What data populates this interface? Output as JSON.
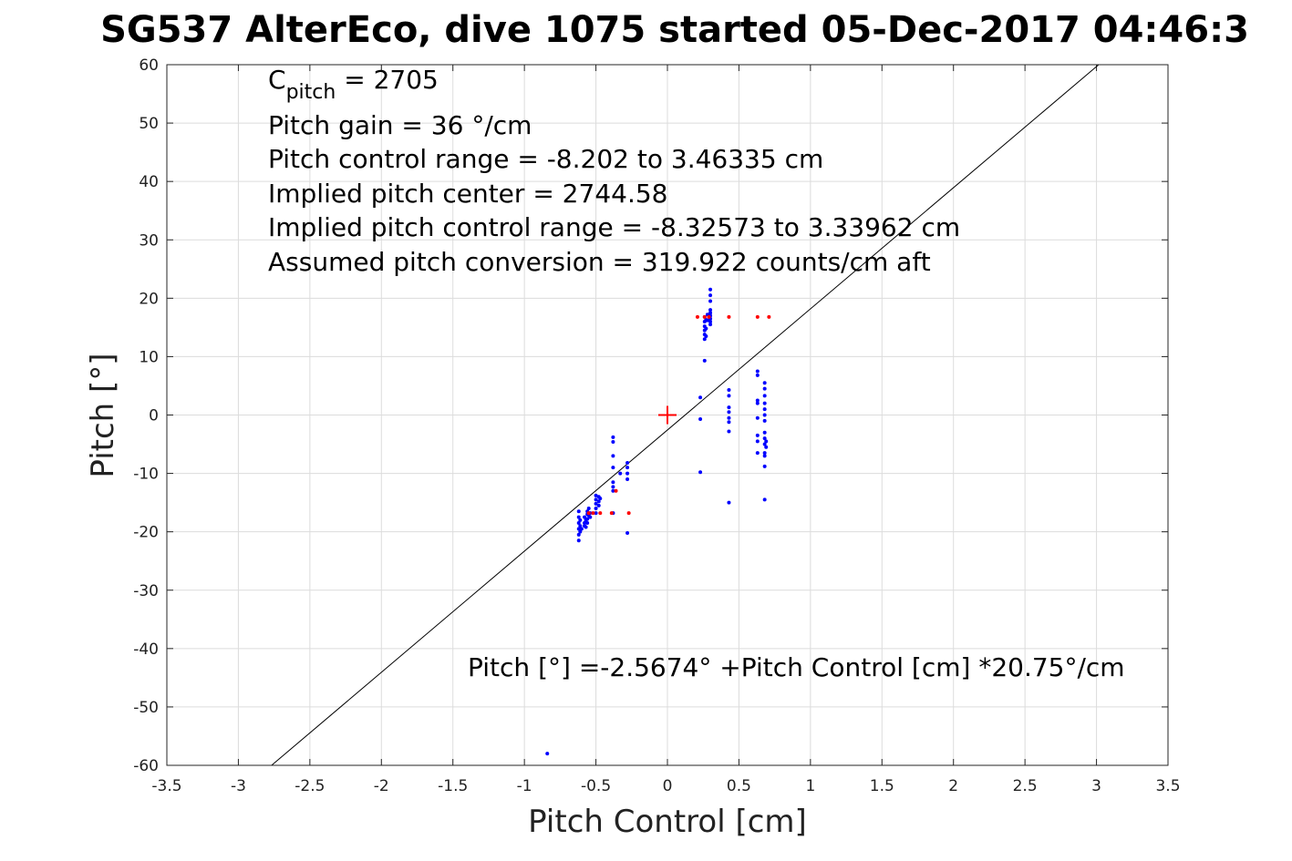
{
  "chart_data": {
    "type": "scatter",
    "title": "SG537 AlterEco, dive 1075 started 05-Dec-2017 04:46:3",
    "xlabel": "Pitch Control [cm]",
    "ylabel": "Pitch [°]",
    "xlim": [
      -3.5,
      3.5
    ],
    "ylim": [
      -60,
      60
    ],
    "grid": true,
    "xticks": [
      -3.5,
      -3,
      -2.5,
      -2,
      -1.5,
      -1,
      -0.5,
      0,
      0.5,
      1,
      1.5,
      2,
      2.5,
      3,
      3.5
    ],
    "xtick_labels": [
      "-3.5",
      "-3",
      "-2.5",
      "-2",
      "-1.5",
      "-1",
      "-0.5",
      "0",
      "0.5",
      "1",
      "1.5",
      "2",
      "2.5",
      "3",
      "3.5"
    ],
    "yticks": [
      -60,
      -50,
      -40,
      -30,
      -20,
      -10,
      0,
      10,
      20,
      30,
      40,
      50,
      60
    ],
    "ytick_labels": [
      "-60",
      "-50",
      "-40",
      "-30",
      "-20",
      "-10",
      "0",
      "10",
      "20",
      "30",
      "40",
      "50",
      "60"
    ],
    "annotations": {
      "c_pitch_main": "C",
      "c_pitch_sub": "pitch",
      "c_pitch_value": " = 2705",
      "lines": [
        "Pitch gain = 36 °/cm",
        "Pitch control range = -8.202 to 3.46335 cm",
        "Implied pitch center = 2744.58",
        "Implied pitch control range = -8.32573 to 3.33962 cm",
        "Assumed pitch conversion = 319.922 counts/cm aft"
      ],
      "fit_equation": "Pitch [°] =-2.5674° +Pitch Control [cm] *20.75°/cm"
    },
    "fit_line": {
      "intercept": -2.5674,
      "slope": 20.75,
      "color": "#000000"
    },
    "center_marker": {
      "x": 0,
      "y": 0,
      "color": "#ff0000"
    },
    "series": [
      {
        "color": "#0000ff",
        "points": [
          [
            -0.62,
            -16.5
          ],
          [
            -0.62,
            -17.5
          ],
          [
            -0.62,
            -18.5
          ],
          [
            -0.62,
            -19.5
          ],
          [
            -0.62,
            -20.5
          ],
          [
            -0.62,
            -21.5
          ],
          [
            -0.61,
            -18.0
          ],
          [
            -0.61,
            -19.0
          ],
          [
            -0.61,
            -20.0
          ],
          [
            -0.6,
            -19.5
          ],
          [
            -0.58,
            -17.5
          ],
          [
            -0.58,
            -18.5
          ],
          [
            -0.58,
            -19.0
          ],
          [
            -0.57,
            -18.0
          ],
          [
            -0.57,
            -19.2
          ],
          [
            -0.56,
            -16.5
          ],
          [
            -0.56,
            -17.0
          ],
          [
            -0.56,
            -17.8
          ],
          [
            -0.56,
            -18.5
          ],
          [
            -0.55,
            -16.0
          ],
          [
            -0.55,
            -17.2
          ],
          [
            -0.54,
            -16.8
          ],
          [
            -0.54,
            -17.5
          ],
          [
            -0.5,
            -13.8
          ],
          [
            -0.5,
            -14.5
          ],
          [
            -0.5,
            -15.2
          ],
          [
            -0.5,
            -16.0
          ],
          [
            -0.5,
            -16.8
          ],
          [
            -0.48,
            -14.0
          ],
          [
            -0.48,
            -14.8
          ],
          [
            -0.48,
            -15.5
          ],
          [
            -0.47,
            -14.3
          ],
          [
            -0.38,
            -3.8
          ],
          [
            -0.38,
            -4.6
          ],
          [
            -0.38,
            -7.0
          ],
          [
            -0.38,
            -9.0
          ],
          [
            -0.38,
            -11.5
          ],
          [
            -0.38,
            -12.3
          ],
          [
            -0.38,
            -13.0
          ],
          [
            -0.38,
            -16.8
          ],
          [
            -0.28,
            -8.2
          ],
          [
            -0.28,
            -9.0
          ],
          [
            -0.28,
            -10.0
          ],
          [
            -0.28,
            -11.0
          ],
          [
            -0.28,
            -20.2
          ],
          [
            -0.33,
            -10.0
          ],
          [
            0.23,
            3.0
          ],
          [
            0.23,
            -0.7
          ],
          [
            0.23,
            -9.8
          ],
          [
            0.26,
            9.3
          ],
          [
            0.26,
            13.0
          ],
          [
            0.26,
            13.8
          ],
          [
            0.26,
            14.5
          ],
          [
            0.26,
            15.2
          ],
          [
            0.26,
            16.0
          ],
          [
            0.26,
            16.8
          ],
          [
            0.27,
            13.5
          ],
          [
            0.27,
            14.8
          ],
          [
            0.27,
            16.3
          ],
          [
            0.28,
            16.2
          ],
          [
            0.28,
            17.2
          ],
          [
            0.3,
            15.5
          ],
          [
            0.3,
            16.0
          ],
          [
            0.3,
            16.5
          ],
          [
            0.3,
            17.0
          ],
          [
            0.3,
            17.5
          ],
          [
            0.3,
            18.0
          ],
          [
            0.3,
            19.5
          ],
          [
            0.3,
            20.5
          ],
          [
            0.3,
            21.5
          ],
          [
            0.43,
            4.3
          ],
          [
            0.43,
            3.3
          ],
          [
            0.43,
            1.3
          ],
          [
            0.43,
            0.5
          ],
          [
            0.43,
            -0.5
          ],
          [
            0.43,
            -1.2
          ],
          [
            0.43,
            -2.8
          ],
          [
            0.43,
            -15.0
          ],
          [
            0.63,
            7.5
          ],
          [
            0.63,
            6.8
          ],
          [
            0.63,
            2.5
          ],
          [
            0.63,
            2.0
          ],
          [
            0.63,
            -0.5
          ],
          [
            0.63,
            -3.5
          ],
          [
            0.63,
            -4.5
          ],
          [
            0.63,
            -6.5
          ],
          [
            0.68,
            5.5
          ],
          [
            0.68,
            4.5
          ],
          [
            0.68,
            3.3
          ],
          [
            0.68,
            2.0
          ],
          [
            0.68,
            1.0
          ],
          [
            0.68,
            0.0
          ],
          [
            0.68,
            -1.0
          ],
          [
            0.68,
            -3.0
          ],
          [
            0.68,
            -4.0
          ],
          [
            0.68,
            -5.0
          ],
          [
            0.68,
            -6.5
          ],
          [
            0.68,
            -7.0
          ],
          [
            0.68,
            -8.8
          ],
          [
            0.68,
            -14.5
          ],
          [
            0.69,
            -4.5
          ],
          [
            0.69,
            -5.5
          ],
          [
            -0.84,
            -58.0
          ]
        ]
      },
      {
        "color": "#ff0000",
        "points": [
          [
            -0.55,
            -16.8
          ],
          [
            -0.52,
            -16.8
          ],
          [
            -0.47,
            -16.8
          ],
          [
            -0.39,
            -16.8
          ],
          [
            -0.27,
            -16.8
          ],
          [
            -0.36,
            -13.0
          ],
          [
            0.21,
            16.8
          ],
          [
            0.26,
            16.8
          ],
          [
            0.29,
            16.8
          ],
          [
            0.43,
            16.8
          ],
          [
            0.63,
            16.8
          ],
          [
            0.71,
            16.8
          ]
        ]
      }
    ]
  }
}
